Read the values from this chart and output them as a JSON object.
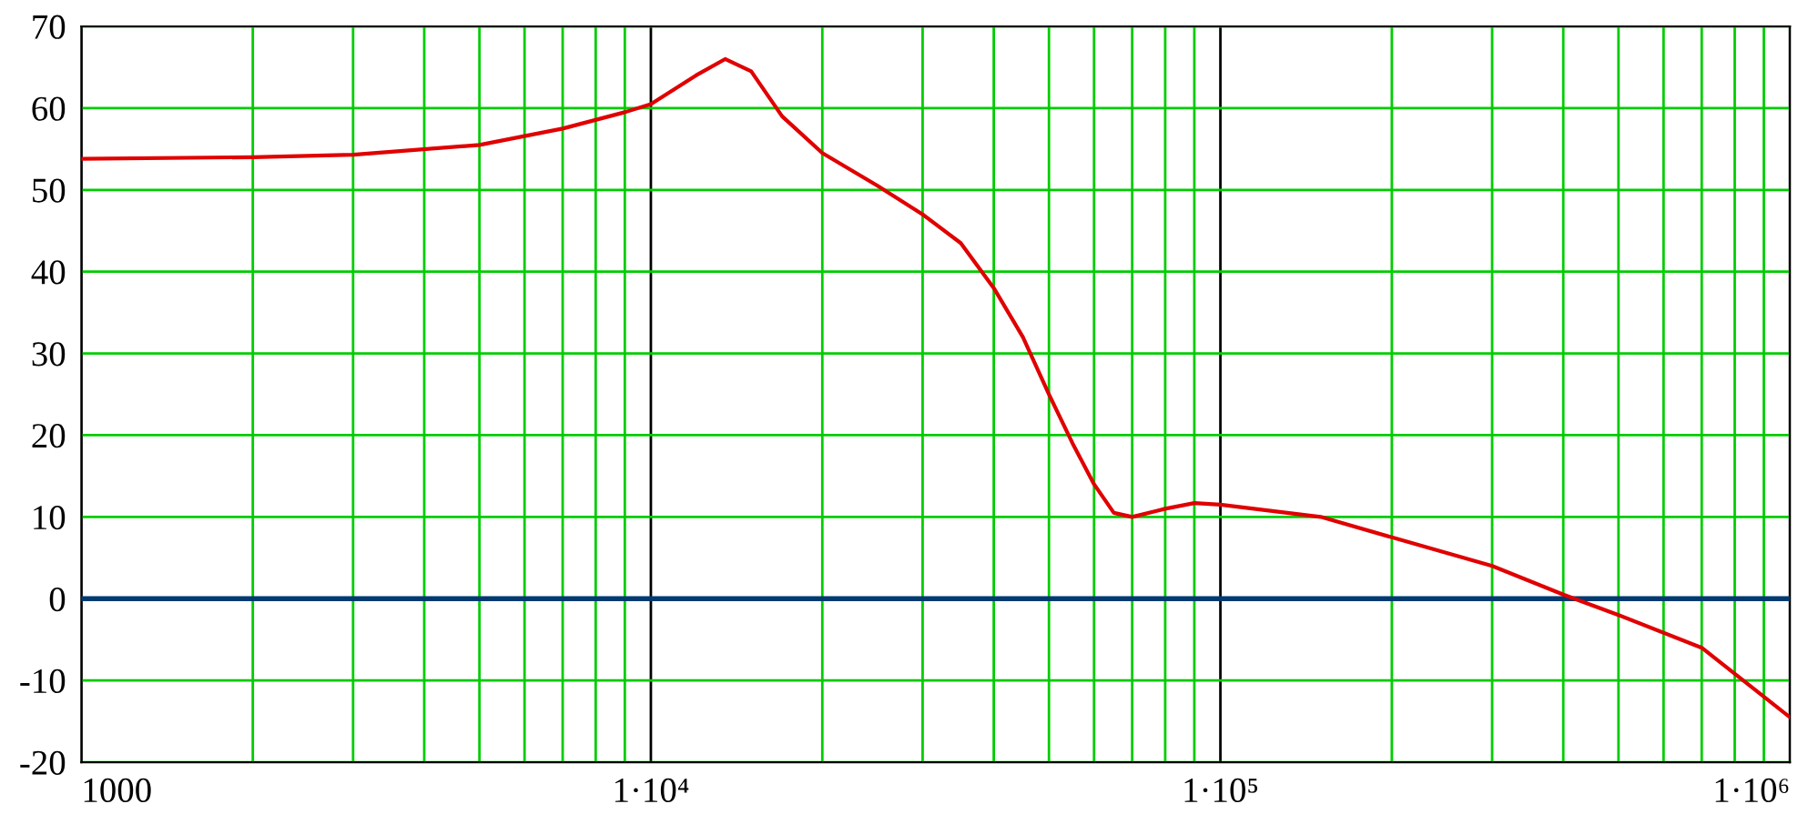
{
  "chart_data": {
    "type": "line",
    "log": "x",
    "xlim": [
      1000,
      1000000
    ],
    "ylim": [
      -20,
      70
    ],
    "xticks": [
      {
        "value": 1000,
        "label": "1000"
      },
      {
        "value": 10000,
        "label": "1·10⁴"
      },
      {
        "value": 100000,
        "label": "1·10⁵"
      },
      {
        "value": 1000000,
        "label": "1·10⁶"
      }
    ],
    "yticks": [
      -20,
      -10,
      0,
      10,
      20,
      30,
      40,
      50,
      60,
      70
    ],
    "grid": true,
    "marker": "none",
    "line_style": "solid",
    "x": [
      1000,
      2000,
      3000,
      5000,
      7000,
      9000,
      10000,
      12000,
      13500,
      15000,
      17000,
      20000,
      25000,
      30000,
      35000,
      40000,
      45000,
      50000,
      55000,
      60000,
      65000,
      70000,
      80000,
      90000,
      100000,
      150000,
      200000,
      300000,
      400000,
      500000,
      700000,
      1000000
    ],
    "series": [
      {
        "color": "#e00000",
        "values": [
          53.8,
          54,
          54.3,
          55.5,
          57.5,
          59.5,
          60.5,
          64,
          66,
          64.5,
          59,
          54.5,
          50.5,
          47,
          43.5,
          38,
          32,
          25,
          19,
          14,
          10.5,
          10,
          11,
          11.7,
          11.5,
          10,
          7.5,
          4,
          0.5,
          -2,
          -6,
          -14.5
        ]
      }
    ],
    "ref_lines": [
      {
        "axis": "y",
        "value": 0,
        "color": "#003a70",
        "line_style": "solid"
      }
    ]
  }
}
